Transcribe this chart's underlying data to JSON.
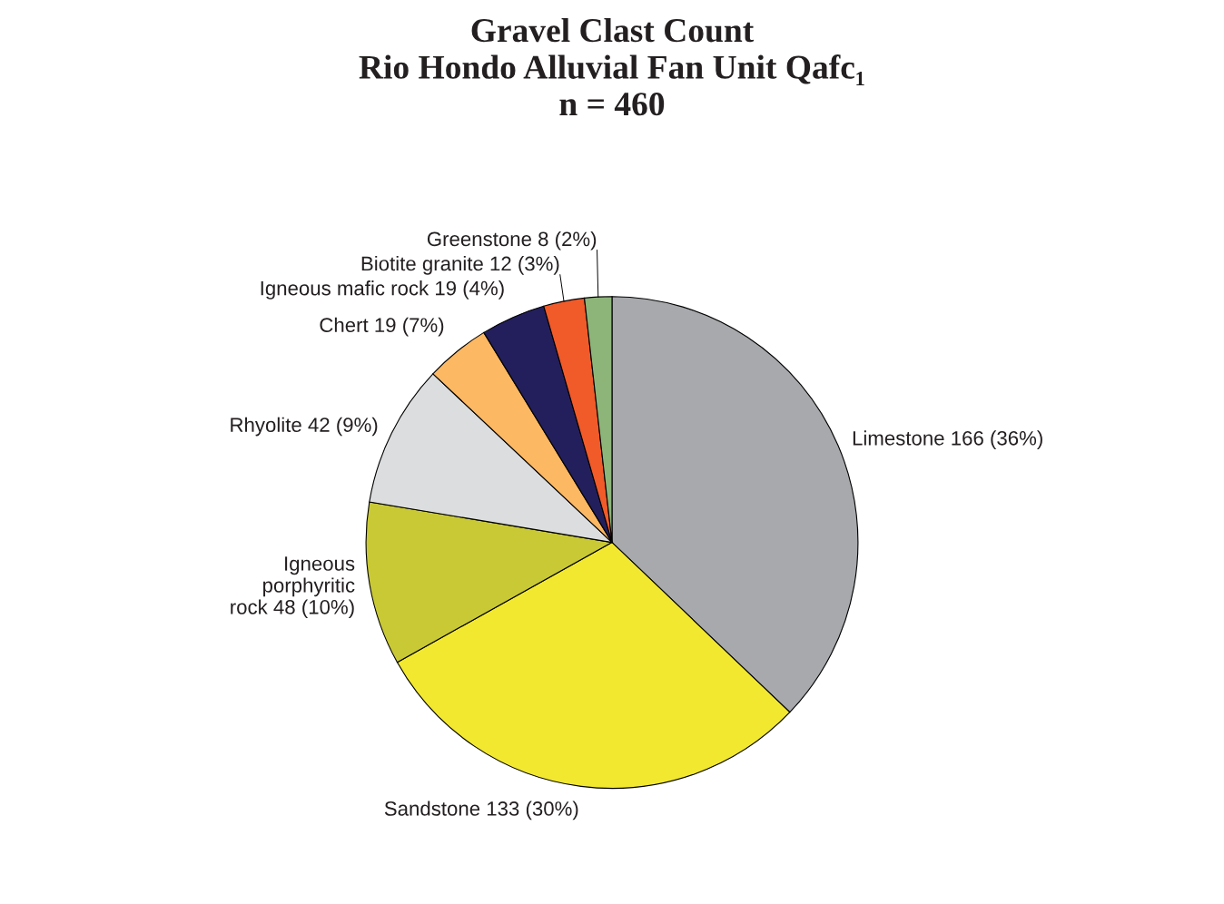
{
  "chart_data": {
    "type": "pie",
    "title": "Gravel Clast Count\nRio Hondo Alluvial Fan Unit Qafc₁\nn = 460",
    "categories": [
      "Limestone",
      "Sandstone",
      "Igneous\nporphyritic\nrock",
      "Rhyolite",
      "Chert",
      "Igneous mafic rock",
      "Biotite granite",
      "Greenstone"
    ],
    "values": [
      166,
      133,
      48,
      42,
      19,
      19,
      12,
      8
    ],
    "value_labels": [
      "166 (36%)",
      "133 (30%)",
      "48 (10%)",
      "42 (9%)",
      "19 (7%)",
      "19 (4%)",
      "12 (3%)",
      "8 (2%)"
    ],
    "colors": [
      "#a7a9ac",
      "#f2e830",
      "#c9c936",
      "#dcdddf",
      "#fdb863",
      "#231f5c",
      "#f15a29",
      "#8db57a"
    ]
  }
}
